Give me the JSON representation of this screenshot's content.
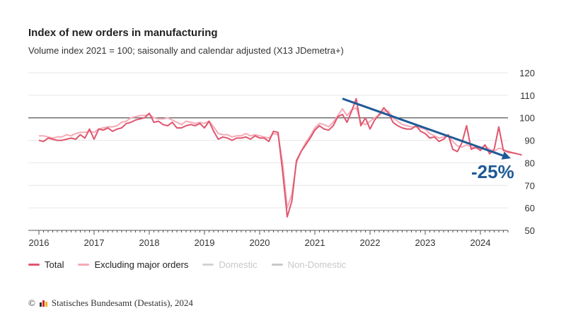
{
  "header": {
    "title": "Index of new orders in manufacturing",
    "subtitle": "Volume index 2021 = 100; saisonally and calendar adjusted (X13 JDemetra+)"
  },
  "annotation": {
    "label": "-25%",
    "color": "#1f5a96",
    "arrow_from": {
      "date": "2021-07",
      "value": 108.5
    },
    "arrow_to": {
      "date": "2024-07",
      "value": 82
    }
  },
  "legend": [
    {
      "label": "Total",
      "color": "#e0566f",
      "active": true
    },
    {
      "label": "Excluding major orders",
      "color": "#f5aab6",
      "active": true
    },
    {
      "label": "Domestic",
      "color": "#d3d3d3",
      "active": false
    },
    {
      "label": "Non-Domestic",
      "color": "#c8c8c8",
      "active": false
    }
  ],
  "footer": {
    "copyright_symbol": "©",
    "source": "Statisches Bundesamt (Destatis), 2024"
  },
  "chart_data": {
    "type": "line",
    "title": "Index of new orders in manufacturing",
    "subtitle": "Volume index 2021 = 100; saisonally and calendar adjusted (X13 JDemetra+)",
    "xlabel": "",
    "ylabel": "",
    "x_start": "2016-01",
    "x_frequency": "monthly",
    "x_tick_labels": [
      "2016",
      "2017",
      "2018",
      "2019",
      "2020",
      "2021",
      "2022",
      "2023",
      "2024"
    ],
    "y_ticks": [
      50,
      60,
      70,
      80,
      90,
      100,
      110,
      120
    ],
    "ylim": [
      50,
      120
    ],
    "reference_line": 100,
    "grid": true,
    "legend_position": "bottom-left",
    "y_axis_side": "right",
    "series": [
      {
        "name": "Total",
        "values": [
          90,
          89.5,
          91,
          90.5,
          90,
          90,
          90.5,
          91,
          90.5,
          92.5,
          91,
          95,
          90.5,
          95,
          94.5,
          95.5,
          94,
          95,
          95.5,
          97.5,
          98,
          99,
          99.5,
          100,
          102,
          98,
          98.5,
          97,
          96.5,
          98,
          95.5,
          95.5,
          96.5,
          97,
          96.5,
          97.5,
          95.5,
          98.5,
          94,
          90.5,
          91.5,
          91,
          90,
          91,
          91,
          91.5,
          90.5,
          92,
          91,
          91,
          89.5,
          94,
          93.5,
          76,
          56,
          63,
          81,
          85,
          88,
          91,
          94.5,
          96.5,
          95,
          94.5,
          96.5,
          100.5,
          101.5,
          98,
          103,
          108.5,
          96.5,
          100,
          95,
          99,
          101.5,
          104.5,
          102,
          98,
          96.5,
          95.5,
          95,
          95,
          96.5,
          94,
          93,
          91,
          91.5,
          89.5,
          90.5,
          92.5,
          86,
          85,
          89,
          96.5,
          86,
          87,
          85.5,
          88,
          84,
          86,
          96,
          85.5,
          85,
          84.5,
          84,
          83.5
        ]
      },
      {
        "name": "Excluding major orders",
        "values": [
          92,
          92,
          91.5,
          91,
          91.5,
          91.5,
          92.5,
          92,
          93,
          93.5,
          93.5,
          94,
          93.5,
          95,
          95.5,
          96,
          96,
          96.5,
          98,
          98.5,
          100,
          100.5,
          101,
          101,
          101.5,
          100,
          99.5,
          99.5,
          100,
          99,
          98,
          97,
          98.5,
          98,
          97.5,
          98,
          97.5,
          98.5,
          96,
          93,
          92.5,
          92.5,
          91.5,
          92,
          92,
          93,
          92,
          92.5,
          92,
          91.5,
          91,
          93,
          92.5,
          80,
          60,
          66,
          80,
          85,
          89,
          92,
          95.5,
          97.5,
          97,
          96,
          98,
          101,
          104,
          101,
          103.5,
          104.5,
          98,
          97,
          98.5,
          100,
          101,
          103,
          103,
          100,
          98.5,
          97,
          96.5,
          96,
          96,
          95.5,
          95,
          93,
          92,
          91,
          91.5,
          92,
          89.5,
          87.5,
          87,
          88,
          87,
          86.5,
          86.5,
          87.5,
          86,
          85,
          86.5,
          86,
          84.5,
          84.5,
          84,
          83.5
        ]
      }
    ]
  }
}
